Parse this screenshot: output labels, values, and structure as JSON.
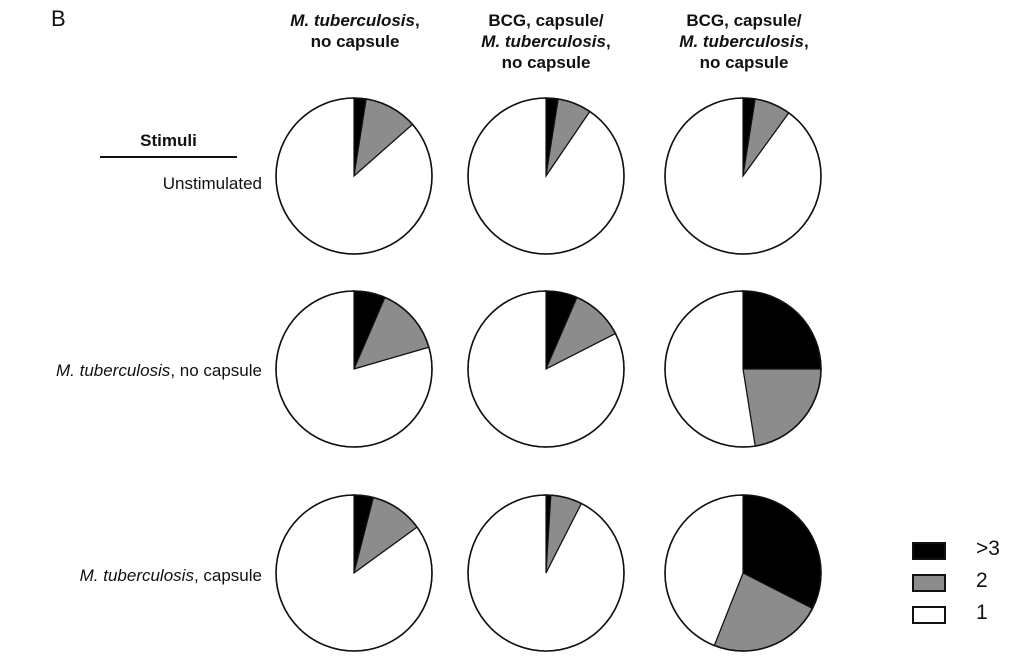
{
  "panel_label": "B",
  "columns": [
    {
      "lines": [
        {
          "parts": [
            {
              "text": "M. tuberculosis",
              "italic": true
            },
            {
              "text": ",",
              "italic": false
            }
          ]
        },
        {
          "parts": [
            {
              "text": "no capsule",
              "italic": false
            }
          ]
        }
      ]
    },
    {
      "lines": [
        {
          "parts": [
            {
              "text": "BCG, capsule/",
              "italic": false
            }
          ]
        },
        {
          "parts": [
            {
              "text": "M. tuberculosis",
              "italic": true
            },
            {
              "text": ",",
              "italic": false
            }
          ]
        },
        {
          "parts": [
            {
              "text": "no capsule",
              "italic": false
            }
          ]
        }
      ]
    },
    {
      "lines": [
        {
          "parts": [
            {
              "text": "BCG, capsule/",
              "italic": false
            }
          ]
        },
        {
          "parts": [
            {
              "text": "M. tuberculosis",
              "italic": true
            },
            {
              "text": ",",
              "italic": false
            }
          ]
        },
        {
          "parts": [
            {
              "text": "no capsule",
              "italic": false
            }
          ]
        }
      ]
    }
  ],
  "stimuli_title": "Stimuli",
  "rows": [
    {
      "parts": [
        {
          "text": "Unstimulated",
          "italic": false
        }
      ]
    },
    {
      "parts": [
        {
          "text": "M. tuberculosis",
          "italic": true
        },
        {
          "text": ", no capsule",
          "italic": false
        }
      ]
    },
    {
      "parts": [
        {
          "text": "M. tuberculosis",
          "italic": true
        },
        {
          "text": ", capsule",
          "italic": false
        }
      ]
    }
  ],
  "legend": [
    {
      "label": ">3",
      "color": "#000000"
    },
    {
      "label": "2",
      "color": "#8c8c8c"
    },
    {
      "label": "1",
      "color": "#ffffff"
    }
  ],
  "chart_data": {
    "type": "pie",
    "categories": [
      ">3",
      "2",
      "1"
    ],
    "colors": [
      "#000000",
      "#8c8c8c",
      "#ffffff"
    ],
    "grid": [
      [
        [
          2.5,
          11.0,
          86.5
        ],
        [
          2.5,
          7.0,
          90.5
        ],
        [
          2.5,
          7.5,
          90.0
        ]
      ],
      [
        [
          6.5,
          14.0,
          79.5
        ],
        [
          6.5,
          11.0,
          82.5
        ],
        [
          25.0,
          22.5,
          52.5
        ]
      ],
      [
        [
          4.0,
          11.0,
          85.0
        ],
        [
          1.0,
          6.5,
          92.5
        ],
        [
          32.5,
          23.5,
          44.0
        ]
      ]
    ]
  }
}
